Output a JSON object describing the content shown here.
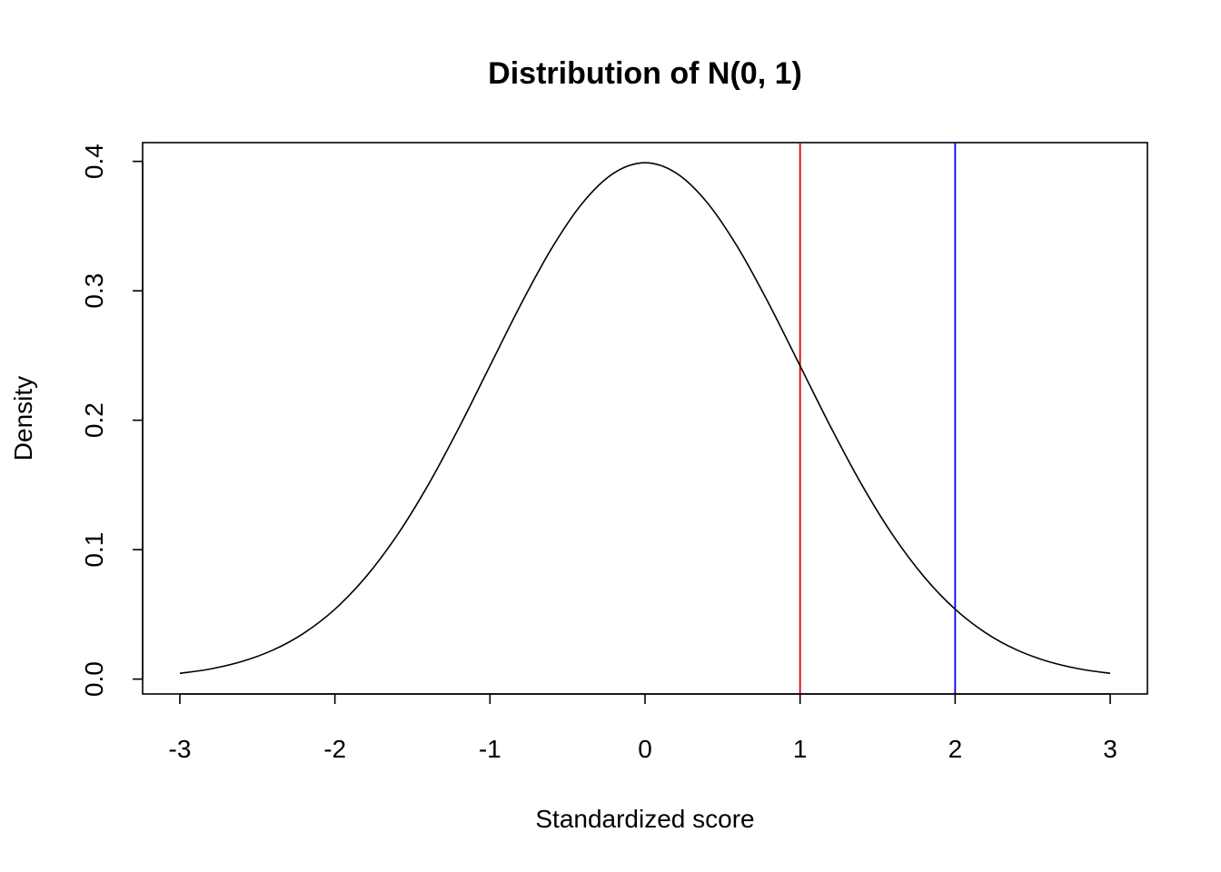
{
  "chart_data": {
    "type": "line",
    "title": "Distribution of N(0, 1)",
    "xlabel": "Standardized score",
    "ylabel": "Density",
    "xlim": [
      -3.24,
      3.24
    ],
    "ylim": [
      -0.0115,
      0.4145
    ],
    "grid": false,
    "x_ticks": [
      -3,
      -2,
      -1,
      0,
      1,
      2,
      3
    ],
    "x_tick_labels": [
      "-3",
      "-2",
      "-1",
      "0",
      "1",
      "2",
      "3"
    ],
    "y_ticks": [
      0.0,
      0.1,
      0.2,
      0.3,
      0.4
    ],
    "y_tick_labels": [
      "0.0",
      "0.1",
      "0.2",
      "0.3",
      "0.4"
    ],
    "series": [
      {
        "color": "#000000",
        "x": [
          -3.0,
          -2.8,
          -2.6,
          -2.4,
          -2.2,
          -2.0,
          -1.8,
          -1.6,
          -1.4,
          -1.2,
          -1.0,
          -0.8,
          -0.6,
          -0.4,
          -0.2,
          0.0,
          0.2,
          0.4,
          0.6,
          0.8,
          1.0,
          1.2,
          1.4,
          1.6,
          1.8,
          2.0,
          2.2,
          2.4,
          2.6,
          2.8,
          3.0
        ],
        "values": [
          0.0044,
          0.0079,
          0.0136,
          0.0224,
          0.0355,
          0.054,
          0.079,
          0.1109,
          0.1497,
          0.1942,
          0.242,
          0.2897,
          0.3332,
          0.3683,
          0.391,
          0.3989,
          0.391,
          0.3683,
          0.3332,
          0.2897,
          0.242,
          0.1942,
          0.1497,
          0.1109,
          0.079,
          0.054,
          0.0355,
          0.0224,
          0.0136,
          0.0079,
          0.0044
        ]
      }
    ],
    "vertical_lines": [
      {
        "x": 1,
        "color": "#e00000"
      },
      {
        "x": 2,
        "color": "#0000ff"
      }
    ]
  }
}
